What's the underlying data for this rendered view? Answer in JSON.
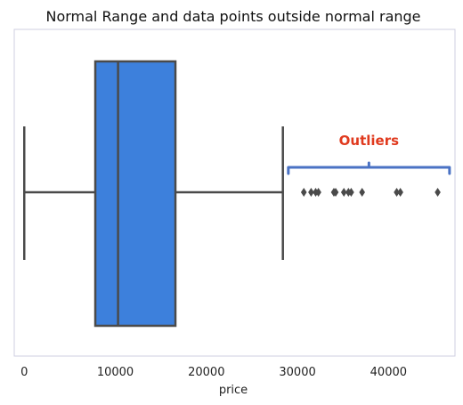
{
  "chart_data": {
    "type": "box",
    "title": "Normal Range and data points outside normal range",
    "xlabel": "price",
    "ylabel": "",
    "xlim": [
      -1100,
      47300
    ],
    "xticks": [
      0,
      10000,
      20000,
      30000,
      40000
    ],
    "tick_labels": [
      "0",
      "10000",
      "20000",
      "30000",
      "40000"
    ],
    "grid": false,
    "box": {
      "whisker_low": 0,
      "q1": 7800,
      "median": 10300,
      "q3": 16600,
      "whisker_high": 28400
    },
    "outliers": [
      30700,
      31500,
      32000,
      32300,
      34000,
      34200,
      35100,
      35600,
      35900,
      37100,
      40900,
      41300,
      45400
    ],
    "annotation": {
      "label": "Outliers",
      "bracket_range": [
        29000,
        46700
      ]
    },
    "colors": {
      "box_fill": "#3d80dc",
      "box_edge": "#4a4a4a",
      "annotation_text": "#e03a1e",
      "bracket": "#4a72c4",
      "frame": "#cfcfe0"
    }
  }
}
